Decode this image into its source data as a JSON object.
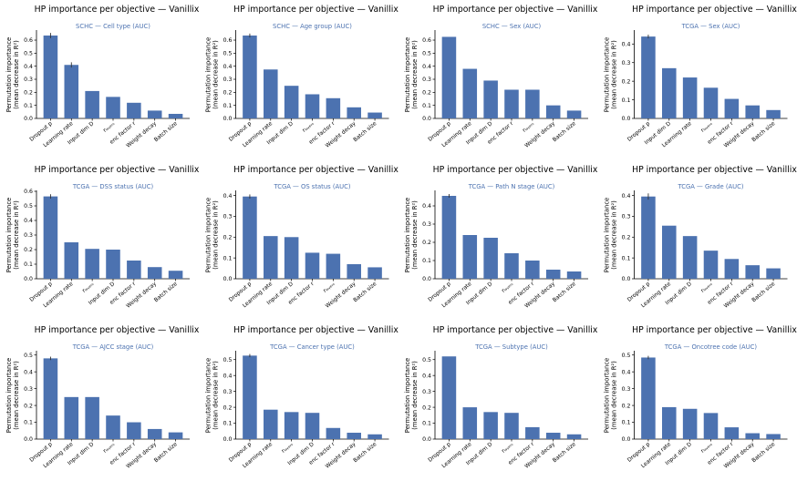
{
  "colors": {
    "bar": "#4c72b0",
    "subtitle": "#4c72b0",
    "axis": "#000000",
    "text": "#000000"
  },
  "chart_data": [
    {
      "type": "bar",
      "title": "HP importance per objective — Vanillix",
      "subtitle": "SCHC — Cell type (AUC)",
      "ylabel": "Permutation importance",
      "ylabel2": "(mean decrease in R²)",
      "ylim": [
        0,
        0.67
      ],
      "yticks": [
        "0.0",
        "0.1",
        "0.2",
        "0.3",
        "0.4",
        "0.5",
        "0.6"
      ],
      "categories": [
        "Dropout p",
        "Learning rate",
        "Input dim D",
        "rₗₐᵧₑᵣₛ",
        "enc factor r",
        "Weight decay",
        "Batch size"
      ],
      "values": [
        0.635,
        0.41,
        0.21,
        0.165,
        0.12,
        0.06,
        0.035
      ],
      "errors": [
        0.02,
        0.02,
        0.0,
        0.0,
        0.0,
        0.0,
        0.0
      ]
    },
    {
      "type": "bar",
      "title": "HP importance per objective — Vanillix",
      "subtitle": "SCHC — Age group (AUC)",
      "ylabel": "Permutation importance",
      "ylabel2": "(mean decrease in R²)",
      "ylim": [
        0,
        0.67
      ],
      "yticks": [
        "0.0",
        "0.1",
        "0.2",
        "0.3",
        "0.4",
        "0.5",
        "0.6"
      ],
      "categories": [
        "Dropout p",
        "Learning rate",
        "Input dim D",
        "rₗₐᵧₑᵣₛ",
        "enc factor r",
        "Weight decay",
        "Batch size"
      ],
      "values": [
        0.635,
        0.375,
        0.25,
        0.185,
        0.155,
        0.085,
        0.045
      ],
      "errors": [
        0.015,
        0.0,
        0.0,
        0.0,
        0.0,
        0.0,
        0.0
      ]
    },
    {
      "type": "bar",
      "title": "HP importance per objective — Vanillix",
      "subtitle": "SCHC — Sex (AUC)",
      "ylabel": "Permutation importance",
      "ylabel2": "(mean decrease in R²)",
      "ylim": [
        0,
        0.67
      ],
      "yticks": [
        "0.0",
        "0.1",
        "0.2",
        "0.3",
        "0.4",
        "0.5",
        "0.6"
      ],
      "categories": [
        "Dropout p",
        "Learning rate",
        "Input dim D",
        "enc factor r",
        "rₗₐᵧₑᵣₛ",
        "Weight decay",
        "Batch size"
      ],
      "values": [
        0.625,
        0.38,
        0.29,
        0.22,
        0.22,
        0.1,
        0.06
      ],
      "errors": [
        0.0,
        0.0,
        0.0,
        0.0,
        0.0,
        0.0,
        0.0
      ]
    },
    {
      "type": "bar",
      "title": "HP importance per objective — Vanillix",
      "subtitle": "TCGA — Sex (AUC)",
      "ylabel": "Permutation importance",
      "ylabel2": "(mean decrease in R²)",
      "ylim": [
        0,
        0.47
      ],
      "yticks": [
        "0.0",
        "0.1",
        "0.2",
        "0.3",
        "0.4"
      ],
      "categories": [
        "Dropout p",
        "Input dim D",
        "Learning rate",
        "rₗₐᵧₑᵣₛ",
        "enc factor r",
        "Weight decay",
        "Batch size"
      ],
      "values": [
        0.44,
        0.27,
        0.22,
        0.165,
        0.105,
        0.07,
        0.045
      ],
      "errors": [
        0.01,
        0.0,
        0.0,
        0.0,
        0.0,
        0.0,
        0.0
      ]
    },
    {
      "type": "bar",
      "title": "HP importance per objective — Vanillix",
      "subtitle": "TCGA — DSS status (AUC)",
      "ylabel": "Permutation importance",
      "ylabel2": "(mean decrease in R²)",
      "ylim": [
        0,
        0.6
      ],
      "yticks": [
        "0.0",
        "0.1",
        "0.2",
        "0.3",
        "0.4",
        "0.5",
        "0.6"
      ],
      "categories": [
        "Dropout p",
        "Learning rate",
        "rₗₐᵧₑᵣₛ",
        "Input dim D",
        "enc factor r",
        "Weight decay",
        "Batch size"
      ],
      "values": [
        0.565,
        0.25,
        0.205,
        0.2,
        0.125,
        0.08,
        0.055
      ],
      "errors": [
        0.015,
        0.0,
        0.0,
        0.0,
        0.0,
        0.0,
        0.0
      ]
    },
    {
      "type": "bar",
      "title": "HP importance per objective — Vanillix",
      "subtitle": "TCGA — OS status (AUC)",
      "ylabel": "Permutation importance",
      "ylabel2": "(mean decrease in R²)",
      "ylim": [
        0,
        0.42
      ],
      "yticks": [
        "0.0",
        "0.1",
        "0.2",
        "0.3",
        "0.4"
      ],
      "categories": [
        "Dropout p",
        "Learning rate",
        "Input dim D",
        "enc factor r",
        "rₗₐᵧₑᵣₛ",
        "Weight decay",
        "Batch size"
      ],
      "values": [
        0.395,
        0.205,
        0.2,
        0.125,
        0.12,
        0.07,
        0.055
      ],
      "errors": [
        0.01,
        0.0,
        0.0,
        0.0,
        0.0,
        0.0,
        0.0
      ]
    },
    {
      "type": "bar",
      "title": "HP importance per objective — Vanillix",
      "subtitle": "TCGA — Path N stage (AUC)",
      "ylabel": "Permutation importance",
      "ylabel2": "(mean decrease in R²)",
      "ylim": [
        0,
        0.48
      ],
      "yticks": [
        "0.0",
        "0.1",
        "0.2",
        "0.3",
        "0.4"
      ],
      "categories": [
        "Dropout p",
        "Learning rate",
        "Input dim D",
        "rₗₐᵧₑᵣₛ",
        "enc factor r",
        "Weight decay",
        "Batch size"
      ],
      "values": [
        0.455,
        0.24,
        0.225,
        0.14,
        0.1,
        0.05,
        0.04
      ],
      "errors": [
        0.01,
        0.0,
        0.0,
        0.0,
        0.0,
        0.0,
        0.0
      ]
    },
    {
      "type": "bar",
      "title": "HP importance per objective — Vanillix",
      "subtitle": "TCGA — Grade (AUC)",
      "ylabel": "Permutation importance",
      "ylabel2": "(mean decrease in R²)",
      "ylim": [
        0,
        0.42
      ],
      "yticks": [
        "0.0",
        "0.1",
        "0.2",
        "0.3",
        "0.4"
      ],
      "categories": [
        "Dropout p",
        "Learning rate",
        "Input dim D",
        "rₗₐᵧₑᵣₛ",
        "enc factor r",
        "Weight decay",
        "Batch size"
      ],
      "values": [
        0.395,
        0.255,
        0.205,
        0.135,
        0.095,
        0.065,
        0.05
      ],
      "errors": [
        0.015,
        0.0,
        0.0,
        0.0,
        0.0,
        0.0,
        0.0
      ]
    },
    {
      "type": "bar",
      "title": "HP importance per objective — Vanillix",
      "subtitle": "TCGA — AJCC stage (AUC)",
      "ylabel": "Permutation importance",
      "ylabel2": "(mean decrease in R²)",
      "ylim": [
        0,
        0.52
      ],
      "yticks": [
        "0.0",
        "0.1",
        "0.2",
        "0.3",
        "0.4",
        "0.5"
      ],
      "categories": [
        "Dropout p",
        "Learning rate",
        "Input dim D",
        "rₗₐᵧₑᵣₛ",
        "enc factor r",
        "Weight decay",
        "Batch size"
      ],
      "values": [
        0.48,
        0.25,
        0.25,
        0.14,
        0.1,
        0.06,
        0.04
      ],
      "errors": [
        0.01,
        0.0,
        0.0,
        0.0,
        0.0,
        0.0,
        0.0
      ]
    },
    {
      "type": "bar",
      "title": "HP importance per objective — Vanillix",
      "subtitle": "TCGA — Cancer type (AUC)",
      "ylabel": "Permutation importance",
      "ylabel2": "(mean decrease in R²)",
      "ylim": [
        0,
        0.55
      ],
      "yticks": [
        "0.0",
        "0.1",
        "0.2",
        "0.3",
        "0.4",
        "0.5"
      ],
      "categories": [
        "Dropout p",
        "Learning rate",
        "rₗₐᵧₑᵣₛ",
        "Input dim D",
        "enc factor r",
        "Weight decay",
        "Batch size"
      ],
      "values": [
        0.525,
        0.185,
        0.17,
        0.165,
        0.07,
        0.04,
        0.03
      ],
      "errors": [
        0.01,
        0.0,
        0.0,
        0.0,
        0.0,
        0.0,
        0.0
      ]
    },
    {
      "type": "bar",
      "title": "HP importance per objective — Vanillix",
      "subtitle": "TCGA — Subtype (AUC)",
      "ylabel": "Permutation importance",
      "ylabel2": "(mean decrease in R²)",
      "ylim": [
        0,
        0.55
      ],
      "yticks": [
        "0.0",
        "0.1",
        "0.2",
        "0.3",
        "0.4",
        "0.5"
      ],
      "categories": [
        "Dropout p",
        "Learning rate",
        "Input dim D",
        "rₗₐᵧₑᵣₛ",
        "enc factor r",
        "Weight decay",
        "Batch size"
      ],
      "values": [
        0.52,
        0.2,
        0.17,
        0.165,
        0.075,
        0.04,
        0.03
      ],
      "errors": [
        0.0,
        0.0,
        0.0,
        0.0,
        0.0,
        0.0,
        0.0
      ]
    },
    {
      "type": "bar",
      "title": "HP importance per objective — Vanillix",
      "subtitle": "TCGA — Oncotree code (AUC)",
      "ylabel": "Permutation importance",
      "ylabel2": "(mean decrease in R²)",
      "ylim": [
        0,
        0.52
      ],
      "yticks": [
        "0.0",
        "0.1",
        "0.2",
        "0.3",
        "0.4",
        "0.5"
      ],
      "categories": [
        "Dropout p",
        "Learning rate",
        "Input dim D",
        "rₗₐᵧₑᵣₛ",
        "enc factor r",
        "Weight decay",
        "Batch size"
      ],
      "values": [
        0.485,
        0.19,
        0.18,
        0.155,
        0.07,
        0.035,
        0.03
      ],
      "errors": [
        0.01,
        0.0,
        0.0,
        0.0,
        0.0,
        0.0,
        0.0
      ]
    }
  ]
}
